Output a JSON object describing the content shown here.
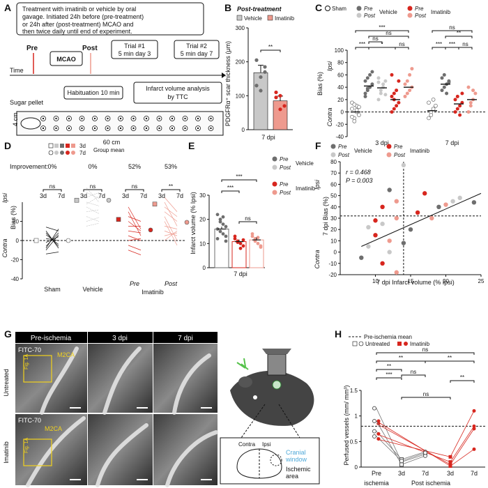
{
  "colors": {
    "grey_light": "#c8c8c8",
    "grey_dark": "#6e6e6e",
    "red": "#d7261e",
    "pink": "#ee9a8e",
    "black": "#111111",
    "blue": "#4ea8d8"
  },
  "panel_labels": [
    "A",
    "B",
    "C",
    "D",
    "E",
    "F",
    "G",
    "H"
  ],
  "panelA": {
    "treatment_text": [
      "Treatment with imatinib or vehicle by oral",
      "gavage. Initiated 24h before (pre-treatment)",
      "or 24h after (post-treatment) MCAO and",
      "then twice daily until end of experiment."
    ],
    "pre": "Pre",
    "post": "Post",
    "mcao": "MCAO",
    "trial1": [
      "Trial #1",
      "5 min day 3"
    ],
    "trial2": [
      "Trial #2",
      "5 min day 7"
    ],
    "time": "Time",
    "habituation": "Habituation 10 min",
    "infarct": [
      "Infarct volume analysis",
      "by TTC"
    ],
    "sugar": "Sugar pellet",
    "width_label": "60 cm",
    "height_label": "4 cm"
  },
  "panelB": {
    "title": "Post-treatment",
    "legend": [
      "Vehicle",
      "Imatinib"
    ],
    "ylabel": "PDGFRα⁺ scar thickness (μm)",
    "xlabel": "7 dpi",
    "sig": "**"
  },
  "panelC": {
    "legend_sham": "Sham",
    "legend_pre": "Pre",
    "legend_post": "Post",
    "legend_vehicle": "Vehicle",
    "legend_imatinib": "Imatinib",
    "ylabel": "Bias (%)",
    "ipsi": "Ipsi",
    "contra": "Contra",
    "groups": [
      "3 dpi",
      "7 dpi"
    ],
    "sig_top": [
      "***",
      "ns",
      "ns",
      "**"
    ],
    "sig_3dpi": [
      "***",
      "*",
      "ns",
      "ns"
    ],
    "sig_7dpi": [
      "***",
      "***",
      "ns"
    ]
  },
  "panelD": {
    "legend": [
      "3d",
      "7d",
      "Group mean"
    ],
    "improvement_label": "Improvement:",
    "improvements": [
      "0%",
      "0%",
      "52%",
      "53%"
    ],
    "sig": [
      "ns",
      "ns",
      "ns",
      "**"
    ],
    "ticks": [
      "3d",
      "7d"
    ],
    "groups": [
      "Sham",
      "Vehicle",
      "Imatinib"
    ],
    "sub": [
      "Pre",
      "Post"
    ],
    "ylabel": "Bias (%)",
    "ipsi": "Ipsi",
    "contra": "Contra"
  },
  "panelE": {
    "ylabel": "Infarct volume (% Ipsi)",
    "xlabel": "7 dpi",
    "sig": [
      "***",
      "***",
      "ns"
    ],
    "legend_vehicle": "Vehicle",
    "legend_imatinib": "Imatinib",
    "pre": "Pre",
    "post": "Post"
  },
  "panelF": {
    "legend_vehicle": "Vehicle",
    "legend_imatinib": "Imatinib",
    "pre": "Pre",
    "post": "Post",
    "r_text": "r = 0.468",
    "p_text": "P = 0.003",
    "ylabel": "7 dpi Bias (%)",
    "xlabel": "7 dpi Infarct volume (% Ipsi)",
    "ipsi": "Ipsi",
    "contra": "Contra"
  },
  "panelG": {
    "cols": [
      "Pre-ischemia",
      "3 dpi",
      "7 dpi"
    ],
    "rows": [
      "Untreated",
      "Imatinib"
    ],
    "fitc": "FITC-70",
    "m2ca": "M2CA",
    "fig": "Fig. 1A",
    "contra": "Contra",
    "ipsi": "Ipsi",
    "cranial": [
      "Cranial",
      "window"
    ],
    "ischemic": [
      "Ischemic",
      "area"
    ]
  },
  "panelH": {
    "legend_mean": "Pre-ischemia mean",
    "legend_untreated": "Untreated",
    "legend_imatinib": "Imatinib",
    "ylabel": "Perfused vessels (mm/ mm³)",
    "ticks": [
      "Pre",
      "3d",
      "7d",
      "3d",
      "7d"
    ],
    "groups": [
      "ischemia",
      "Post ischemia"
    ],
    "sig": [
      "ns",
      "**",
      "**",
      "**",
      "**",
      "***",
      "ns",
      "ns"
    ]
  },
  "chart_data": [
    {
      "panel": "B",
      "type": "bar",
      "categories": [
        "Vehicle",
        "Imatinib"
      ],
      "values": [
        168,
        85
      ],
      "errors": [
        22,
        14
      ],
      "points": [
        [
          130,
          155,
          185,
          205,
          115,
          170
        ],
        [
          95,
          60,
          70,
          110,
          100
        ]
      ],
      "ylim": [
        0,
        300
      ],
      "yticks": [
        0,
        100,
        200,
        300
      ],
      "title": "Post-treatment",
      "ylabel": "PDGFRα⁺ scar thickness (μm)",
      "xlabel": "7 dpi"
    },
    {
      "panel": "C",
      "type": "scatter",
      "ylim": [
        -40,
        100
      ],
      "yticks": [
        -40,
        -20,
        0,
        20,
        40,
        60,
        80,
        100
      ],
      "groups": [
        {
          "name": "3 dpi",
          "series": [
            {
              "name": "Sham",
              "mean": 0,
              "points": [
                5,
                -10,
                10,
                -5,
                15,
                -15,
                0,
                8,
                -8,
                12,
                3
              ]
            },
            {
              "name": "Pre Vehicle",
              "mean": 42,
              "points": [
                30,
                35,
                40,
                45,
                50,
                55,
                60,
                65,
                25,
                38
              ]
            },
            {
              "name": "Post Vehicle",
              "mean": 39,
              "points": [
                20,
                30,
                45,
                50,
                55,
                35,
                40,
                28,
                48
              ]
            },
            {
              "name": "Pre Imatinib",
              "mean": 20,
              "points": [
                0,
                5,
                10,
                15,
                25,
                30,
                35,
                50,
                60,
                20
              ]
            },
            {
              "name": "Post Imatinib",
              "mean": 40,
              "points": [
                25,
                30,
                35,
                40,
                45,
                50,
                60,
                70
              ]
            }
          ]
        },
        {
          "name": "7 dpi",
          "series": [
            {
              "name": "Sham",
              "mean": 2,
              "points": [
                -10,
                0,
                5,
                10,
                15,
                -5,
                20
              ]
            },
            {
              "name": "Vehicle",
              "mean": 45,
              "points": [
                35,
                40,
                45,
                50,
                55,
                60,
                30,
                48
              ]
            },
            {
              "name": "Pre Imatinib",
              "mean": 13,
              "points": [
                0,
                5,
                10,
                15,
                20,
                25,
                -5,
                30
              ]
            },
            {
              "name": "Post Imatinib",
              "mean": 20,
              "points": [
                0,
                10,
                20,
                30,
                40,
                15,
                35
              ]
            }
          ]
        }
      ],
      "ylabel": "Bias (%)"
    },
    {
      "panel": "D",
      "type": "line",
      "ylim": [
        -40,
        40
      ],
      "yticks": [
        -40,
        -20,
        0,
        20
      ],
      "groups": [
        {
          "name": "Sham",
          "means": [
            0,
            0
          ]
        },
        {
          "name": "Vehicle",
          "means": [
            42,
            42
          ]
        },
        {
          "name": "Pre Imatinib",
          "means": [
            22,
            11
          ]
        },
        {
          "name": "Post Imatinib",
          "means": [
            38,
            19
          ]
        }
      ],
      "improvements": [
        "0%",
        "0%",
        "52%",
        "53%"
      ],
      "ylabel": "Bias (%)"
    },
    {
      "panel": "E",
      "type": "bar",
      "categories": [
        "Vehicle",
        "Pre Imatinib",
        "Post Imatinib"
      ],
      "values": [
        16,
        10.8,
        11.5
      ],
      "errors": [
        1,
        0.8,
        1
      ],
      "ylim": [
        0,
        30
      ],
      "yticks": [
        0,
        10,
        20,
        30
      ],
      "ylabel": "Infarct volume (% Ipsi)",
      "xlabel": "7 dpi"
    },
    {
      "panel": "F",
      "type": "scatter",
      "xlim": [
        5,
        25
      ],
      "ylim": [
        -20,
        80
      ],
      "xticks": [
        10,
        15,
        20,
        25
      ],
      "yticks": [
        -20,
        -10,
        0,
        10,
        20,
        30,
        40,
        50,
        60,
        70,
        80
      ],
      "points": [
        [
          14,
          77
        ],
        [
          12,
          55
        ],
        [
          17,
          52
        ],
        [
          20,
          42
        ],
        [
          22,
          48
        ],
        [
          19,
          40
        ],
        [
          16,
          35
        ],
        [
          13,
          30
        ],
        [
          11,
          25
        ],
        [
          15,
          20
        ],
        [
          10,
          15
        ],
        [
          12,
          10
        ],
        [
          9,
          5
        ],
        [
          8,
          -5
        ],
        [
          11,
          -10
        ],
        [
          13,
          -18
        ],
        [
          12,
          0
        ],
        [
          14,
          8
        ],
        [
          10,
          28
        ],
        [
          18,
          30
        ],
        [
          21,
          45
        ],
        [
          24,
          44
        ],
        [
          11,
          40
        ],
        [
          13,
          45
        ],
        [
          9,
          22
        ]
      ],
      "fit": [
        [
          8,
          5
        ],
        [
          25,
          52
        ]
      ],
      "ref_x": 14,
      "ref_y": 32,
      "r": 0.468,
      "p": 0.003,
      "xlabel": "7 dpi Infarct volume (% Ipsi)",
      "ylabel": "7 dpi Bias (%)"
    },
    {
      "panel": "H",
      "type": "line",
      "categories": [
        "Pre ischemia",
        "3d",
        "7d",
        "3d",
        "7d"
      ],
      "ylim": [
        0,
        1.5
      ],
      "yticks": [
        0,
        0.5,
        1.0,
        1.5
      ],
      "reference": 0.8,
      "series": [
        {
          "name": "Untreated",
          "points": [
            [
              1.15,
              0.7,
              0.9,
              0.6
            ],
            [
              0.1,
              0.15,
              0.05,
              0.12
            ],
            [
              0.25,
              0.3,
              0.22,
              0.28
            ]
          ]
        },
        {
          "name": "Imatinib",
          "points": [
            [
              0.9,
              0.85,
              0.65,
              0.55
            ],
            [
              0.02,
              0.05,
              0.1,
              0.2
            ],
            [
              0.35,
              0.75,
              0.8,
              1.1
            ]
          ]
        }
      ],
      "ylabel": "Perfused vessels (mm/ mm³)"
    }
  ]
}
